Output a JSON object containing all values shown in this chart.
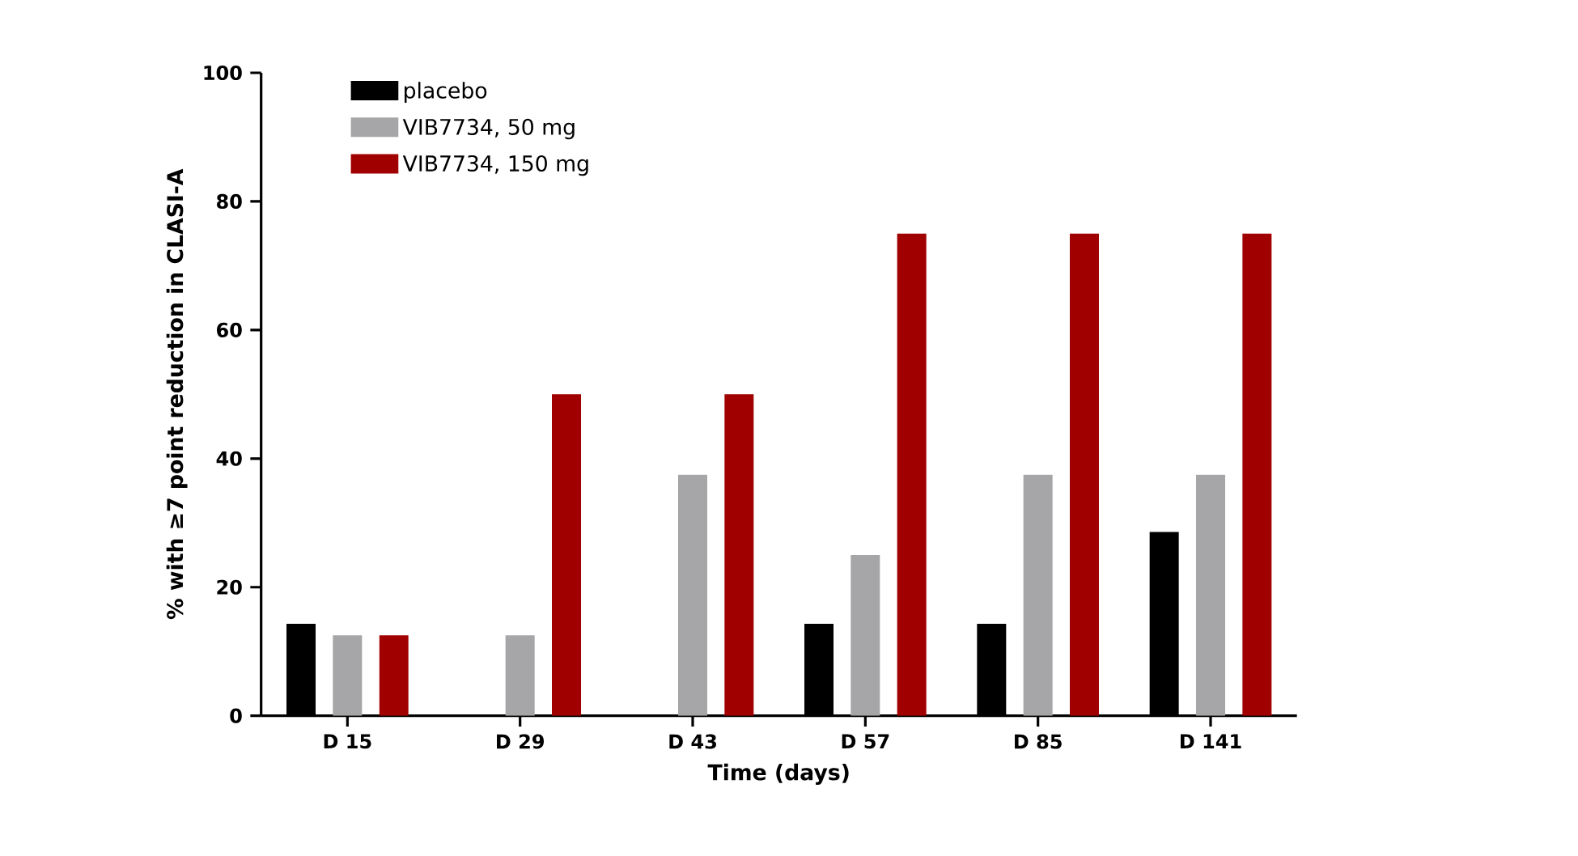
{
  "chart_data": {
    "type": "bar",
    "xlabel": "Time (days)",
    "ylabel": "% with ≥7 point reduction in CLASI-A",
    "categories": [
      "D 15",
      "D 29",
      "D 43",
      "D 57",
      "D 85",
      "D 141"
    ],
    "series": [
      {
        "name": "placebo",
        "color": "#000000",
        "values": [
          14.3,
          0,
          0,
          14.3,
          14.3,
          28.6
        ]
      },
      {
        "name": "VIB7734, 50 mg",
        "color": "#a6a6a8",
        "values": [
          12.5,
          12.5,
          37.5,
          25,
          37.5,
          37.5
        ]
      },
      {
        "name": "VIB7734, 150 mg",
        "color": "#a00000",
        "values": [
          12.5,
          50,
          50,
          75,
          75,
          75
        ]
      }
    ],
    "ylim": [
      0,
      100
    ],
    "yticks": [
      0,
      20,
      40,
      60,
      80,
      100
    ],
    "grid": false,
    "legend": "top left"
  }
}
